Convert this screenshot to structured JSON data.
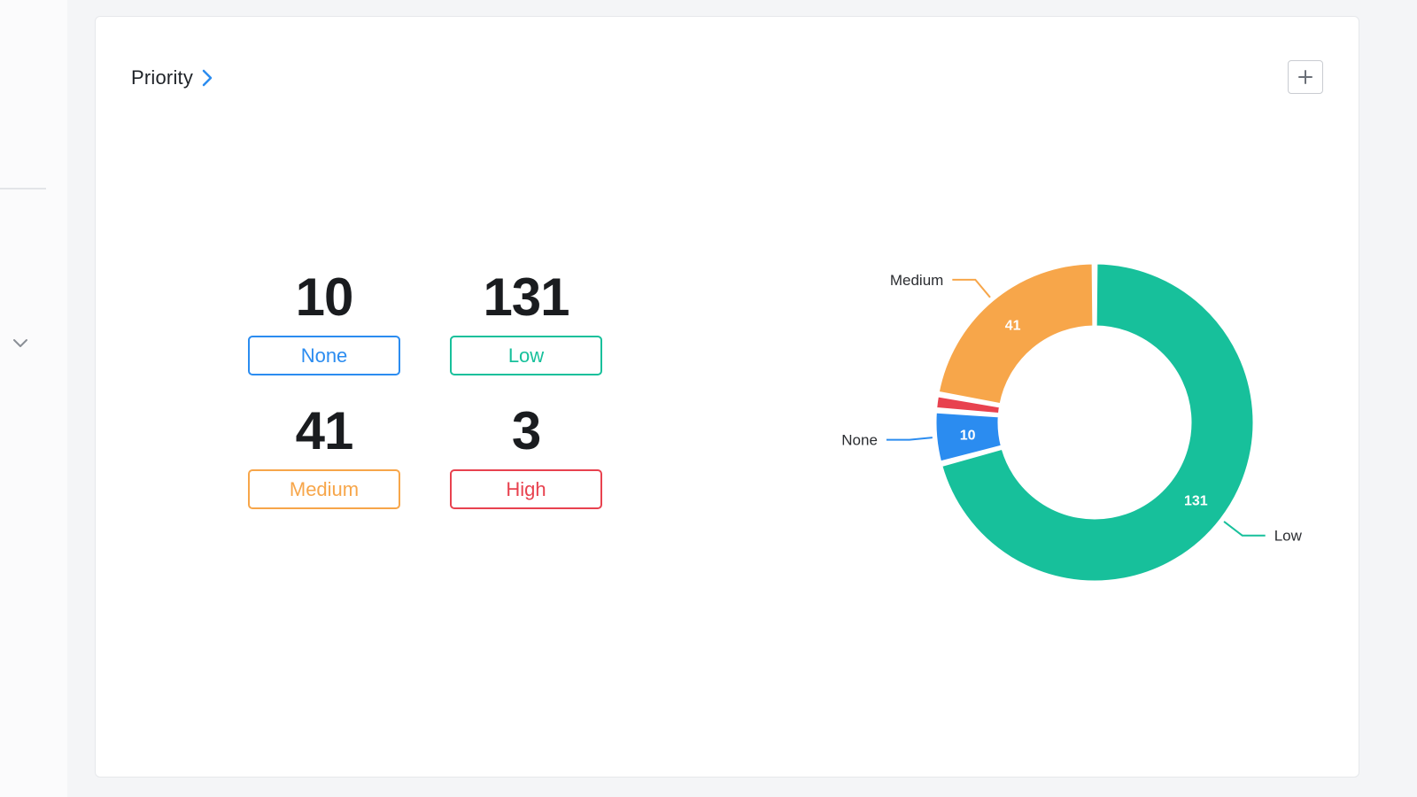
{
  "card": {
    "title": "Priority"
  },
  "stats": [
    {
      "key": "none",
      "count": "10",
      "label": "None",
      "color": "#2b8cf0"
    },
    {
      "key": "low",
      "count": "131",
      "label": "Low",
      "color": "#17c09b"
    },
    {
      "key": "medium",
      "count": "41",
      "label": "Medium",
      "color": "#f7a64a"
    },
    {
      "key": "high",
      "count": "3",
      "label": "High",
      "color": "#e8424f"
    }
  ],
  "icons": {
    "add": "plus-icon",
    "title_link": "chevron-right-icon",
    "sidebar_expand": "chevron-down-icon"
  },
  "chart_data": {
    "type": "pie",
    "donut": true,
    "categories": [
      "Low",
      "None",
      "High",
      "Medium"
    ],
    "values": [
      131,
      10,
      3,
      41
    ],
    "colors": [
      "#17c09b",
      "#2b8cf0",
      "#e8424f",
      "#f7a64a"
    ],
    "slice_labels": [
      "131",
      "10",
      "",
      "41"
    ],
    "leader_labels": [
      "Low",
      "None",
      "",
      "Medium"
    ]
  }
}
